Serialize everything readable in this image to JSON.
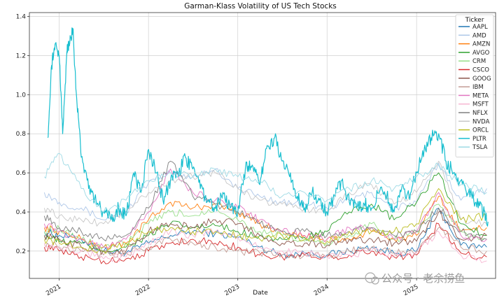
{
  "chart_data": {
    "type": "line",
    "title": "Garman-Klass Volatility of US Tech Stocks",
    "xlabel": "Date",
    "ylabel": "",
    "ylim": [
      0.06,
      1.42
    ],
    "xlim": [
      "2020-09-01",
      "2025-11-20"
    ],
    "grid": true,
    "legend_title": "Ticker",
    "legend_position": "top-right",
    "yticks": [
      "0.2",
      "0.4",
      "0.6",
      "0.8",
      "1.0",
      "1.2",
      "1.4"
    ],
    "xticks": [
      {
        "label": "2021",
        "date": "2021-01-01"
      },
      {
        "label": "2022",
        "date": "2022-01-01"
      },
      {
        "label": "2023",
        "date": "2023-01-01"
      },
      {
        "label": "2024",
        "date": "2024-01-01"
      },
      {
        "label": "2025",
        "date": "2025-01-01"
      }
    ],
    "series": [
      {
        "name": "AAPL",
        "color": "#1f77b4",
        "x": [
          "2020-11-01",
          "2021-01-01",
          "2021-04-01",
          "2021-07-01",
          "2021-10-01",
          "2022-01-01",
          "2022-04-01",
          "2022-07-01",
          "2022-10-01",
          "2023-01-01",
          "2023-04-01",
          "2023-07-01",
          "2023-10-01",
          "2024-01-01",
          "2024-04-01",
          "2024-07-01",
          "2024-10-01",
          "2025-01-01",
          "2025-04-01",
          "2025-07-01",
          "2025-10-15"
        ],
        "y": [
          0.3,
          0.28,
          0.26,
          0.2,
          0.19,
          0.24,
          0.28,
          0.3,
          0.29,
          0.27,
          0.22,
          0.18,
          0.19,
          0.18,
          0.2,
          0.22,
          0.19,
          0.2,
          0.42,
          0.23,
          0.22
        ]
      },
      {
        "name": "AMD",
        "color": "#aec7e8",
        "x": [
          "2020-11-01",
          "2021-01-01",
          "2021-04-01",
          "2021-07-01",
          "2021-10-01",
          "2022-01-01",
          "2022-04-01",
          "2022-07-01",
          "2022-10-01",
          "2023-01-01",
          "2023-04-01",
          "2023-07-01",
          "2023-10-01",
          "2024-01-01",
          "2024-04-01",
          "2024-07-01",
          "2024-10-01",
          "2025-01-01",
          "2025-04-01",
          "2025-07-01",
          "2025-10-15"
        ],
        "y": [
          0.5,
          0.45,
          0.42,
          0.36,
          0.4,
          0.55,
          0.6,
          0.58,
          0.62,
          0.52,
          0.48,
          0.45,
          0.44,
          0.42,
          0.46,
          0.5,
          0.42,
          0.45,
          0.65,
          0.46,
          0.52
        ]
      },
      {
        "name": "AMZN",
        "color": "#ff7f0e",
        "x": [
          "2020-11-01",
          "2021-01-01",
          "2021-04-01",
          "2021-07-01",
          "2021-10-01",
          "2022-01-01",
          "2022-04-01",
          "2022-07-01",
          "2022-10-01",
          "2023-01-01",
          "2023-04-01",
          "2023-07-01",
          "2023-10-01",
          "2024-01-01",
          "2024-04-01",
          "2024-07-01",
          "2024-10-01",
          "2025-01-01",
          "2025-04-01",
          "2025-07-01",
          "2025-10-15"
        ],
        "y": [
          0.32,
          0.3,
          0.26,
          0.22,
          0.24,
          0.36,
          0.45,
          0.42,
          0.44,
          0.4,
          0.34,
          0.3,
          0.28,
          0.26,
          0.26,
          0.3,
          0.26,
          0.28,
          0.48,
          0.3,
          0.32
        ]
      },
      {
        "name": "AVGO",
        "color": "#2ca02c",
        "x": [
          "2020-11-01",
          "2021-01-01",
          "2021-04-01",
          "2021-07-01",
          "2021-10-01",
          "2022-01-01",
          "2022-04-01",
          "2022-07-01",
          "2022-10-01",
          "2023-01-01",
          "2023-04-01",
          "2023-07-01",
          "2023-10-01",
          "2024-01-01",
          "2024-04-01",
          "2024-07-01",
          "2024-10-01",
          "2025-01-01",
          "2025-04-01",
          "2025-07-01",
          "2025-10-15"
        ],
        "y": [
          0.28,
          0.25,
          0.24,
          0.2,
          0.22,
          0.28,
          0.34,
          0.32,
          0.33,
          0.3,
          0.28,
          0.26,
          0.27,
          0.3,
          0.4,
          0.44,
          0.36,
          0.45,
          0.6,
          0.34,
          0.28
        ]
      },
      {
        "name": "CRM",
        "color": "#98df8a",
        "x": [
          "2020-11-01",
          "2021-01-01",
          "2021-04-01",
          "2021-07-01",
          "2021-10-01",
          "2022-01-01",
          "2022-04-01",
          "2022-07-01",
          "2022-10-01",
          "2023-01-01",
          "2023-04-01",
          "2023-07-01",
          "2023-10-01",
          "2024-01-01",
          "2024-04-01",
          "2024-07-01",
          "2024-10-01",
          "2025-01-01",
          "2025-04-01",
          "2025-07-01",
          "2025-10-15"
        ],
        "y": [
          0.3,
          0.32,
          0.26,
          0.22,
          0.24,
          0.34,
          0.4,
          0.38,
          0.42,
          0.36,
          0.3,
          0.28,
          0.25,
          0.24,
          0.28,
          0.34,
          0.26,
          0.3,
          0.44,
          0.3,
          0.26
        ]
      },
      {
        "name": "CSCO",
        "color": "#d62728",
        "x": [
          "2020-11-01",
          "2021-01-01",
          "2021-04-01",
          "2021-07-01",
          "2021-10-01",
          "2022-01-01",
          "2022-04-01",
          "2022-07-01",
          "2022-10-01",
          "2023-01-01",
          "2023-04-01",
          "2023-07-01",
          "2023-10-01",
          "2024-01-01",
          "2024-04-01",
          "2024-07-01",
          "2024-10-01",
          "2025-01-01",
          "2025-04-01",
          "2025-07-01",
          "2025-10-15"
        ],
        "y": [
          0.22,
          0.2,
          0.17,
          0.15,
          0.16,
          0.2,
          0.24,
          0.26,
          0.24,
          0.22,
          0.18,
          0.17,
          0.18,
          0.17,
          0.18,
          0.2,
          0.17,
          0.18,
          0.34,
          0.19,
          0.17
        ]
      },
      {
        "name": "GOOG",
        "color": "#8c564b",
        "x": [
          "2020-11-01",
          "2021-01-01",
          "2021-04-01",
          "2021-07-01",
          "2021-10-01",
          "2022-01-01",
          "2022-04-01",
          "2022-07-01",
          "2022-10-01",
          "2023-01-01",
          "2023-04-01",
          "2023-07-01",
          "2023-10-01",
          "2024-01-01",
          "2024-04-01",
          "2024-07-01",
          "2024-10-01",
          "2025-01-01",
          "2025-04-01",
          "2025-07-01",
          "2025-10-15"
        ],
        "y": [
          0.28,
          0.26,
          0.22,
          0.2,
          0.2,
          0.3,
          0.34,
          0.32,
          0.36,
          0.34,
          0.28,
          0.24,
          0.24,
          0.23,
          0.26,
          0.26,
          0.24,
          0.25,
          0.4,
          0.26,
          0.28
        ]
      },
      {
        "name": "IBM",
        "color": "#c49c94",
        "x": [
          "2020-11-01",
          "2021-01-01",
          "2021-04-01",
          "2021-07-01",
          "2021-10-01",
          "2022-01-01",
          "2022-04-01",
          "2022-07-01",
          "2022-10-01",
          "2023-01-01",
          "2023-04-01",
          "2023-07-01",
          "2023-10-01",
          "2024-01-01",
          "2024-04-01",
          "2024-07-01",
          "2024-10-01",
          "2025-01-01",
          "2025-04-01",
          "2025-07-01",
          "2025-10-15"
        ],
        "y": [
          0.24,
          0.22,
          0.2,
          0.18,
          0.19,
          0.22,
          0.26,
          0.24,
          0.22,
          0.2,
          0.19,
          0.18,
          0.18,
          0.17,
          0.2,
          0.22,
          0.19,
          0.2,
          0.32,
          0.22,
          0.2
        ]
      },
      {
        "name": "META",
        "color": "#e377c2",
        "x": [
          "2020-11-01",
          "2021-01-01",
          "2021-04-01",
          "2021-07-01",
          "2021-10-01",
          "2022-01-01",
          "2022-04-01",
          "2022-07-01",
          "2022-10-01",
          "2023-01-01",
          "2023-04-01",
          "2023-07-01",
          "2023-10-01",
          "2024-01-01",
          "2024-04-01",
          "2024-07-01",
          "2024-10-01",
          "2025-01-01",
          "2025-04-01",
          "2025-07-01",
          "2025-10-15"
        ],
        "y": [
          0.34,
          0.3,
          0.26,
          0.22,
          0.26,
          0.4,
          0.62,
          0.5,
          0.46,
          0.42,
          0.36,
          0.3,
          0.28,
          0.26,
          0.32,
          0.32,
          0.26,
          0.3,
          0.5,
          0.28,
          0.26
        ]
      },
      {
        "name": "MSFT",
        "color": "#f7b6d2",
        "x": [
          "2020-11-01",
          "2021-01-01",
          "2021-04-01",
          "2021-07-01",
          "2021-10-01",
          "2022-01-01",
          "2022-04-01",
          "2022-07-01",
          "2022-10-01",
          "2023-01-01",
          "2023-04-01",
          "2023-07-01",
          "2023-10-01",
          "2024-01-01",
          "2024-04-01",
          "2024-07-01",
          "2024-10-01",
          "2025-01-01",
          "2025-04-01",
          "2025-07-01",
          "2025-10-15"
        ],
        "y": [
          0.24,
          0.22,
          0.2,
          0.16,
          0.17,
          0.24,
          0.3,
          0.28,
          0.3,
          0.27,
          0.22,
          0.2,
          0.19,
          0.17,
          0.18,
          0.2,
          0.18,
          0.19,
          0.3,
          0.18,
          0.15
        ]
      },
      {
        "name": "NFLX",
        "color": "#7f7f7f",
        "x": [
          "2020-11-01",
          "2021-01-01",
          "2021-04-01",
          "2021-07-01",
          "2021-10-01",
          "2022-01-01",
          "2022-04-01",
          "2022-07-01",
          "2022-10-01",
          "2023-01-01",
          "2023-04-01",
          "2023-07-01",
          "2023-10-01",
          "2024-01-01",
          "2024-04-01",
          "2024-07-01",
          "2024-10-01",
          "2025-01-01",
          "2025-04-01",
          "2025-07-01",
          "2025-10-15"
        ],
        "y": [
          0.38,
          0.32,
          0.3,
          0.26,
          0.28,
          0.42,
          0.66,
          0.48,
          0.44,
          0.4,
          0.34,
          0.3,
          0.3,
          0.28,
          0.3,
          0.32,
          0.28,
          0.3,
          0.42,
          0.3,
          0.26
        ]
      },
      {
        "name": "NVDA",
        "color": "#c7c7c7",
        "x": [
          "2020-11-01",
          "2021-01-01",
          "2021-04-01",
          "2021-07-01",
          "2021-10-01",
          "2022-01-01",
          "2022-04-01",
          "2022-07-01",
          "2022-10-01",
          "2023-01-01",
          "2023-04-01",
          "2023-07-01",
          "2023-10-01",
          "2024-01-01",
          "2024-04-01",
          "2024-07-01",
          "2024-10-01",
          "2025-01-01",
          "2025-04-01",
          "2025-07-01",
          "2025-10-15"
        ],
        "y": [
          0.42,
          0.38,
          0.36,
          0.34,
          0.4,
          0.5,
          0.56,
          0.58,
          0.6,
          0.52,
          0.46,
          0.44,
          0.42,
          0.4,
          0.5,
          0.54,
          0.44,
          0.5,
          0.66,
          0.36,
          0.34
        ]
      },
      {
        "name": "ORCL",
        "color": "#bcbd22",
        "x": [
          "2020-11-01",
          "2021-01-01",
          "2021-04-01",
          "2021-07-01",
          "2021-10-01",
          "2022-01-01",
          "2022-04-01",
          "2022-07-01",
          "2022-10-01",
          "2023-01-01",
          "2023-04-01",
          "2023-07-01",
          "2023-10-01",
          "2024-01-01",
          "2024-04-01",
          "2024-07-01",
          "2024-10-01",
          "2025-01-01",
          "2025-04-01",
          "2025-07-01",
          "2025-10-15"
        ],
        "y": [
          0.26,
          0.24,
          0.22,
          0.2,
          0.24,
          0.3,
          0.32,
          0.3,
          0.3,
          0.28,
          0.26,
          0.28,
          0.26,
          0.25,
          0.3,
          0.3,
          0.3,
          0.34,
          0.52,
          0.36,
          0.38
        ]
      },
      {
        "name": "PLTR",
        "color": "#17becf",
        "x": [
          "2020-11-15",
          "2020-12-01",
          "2020-12-15",
          "2021-01-01",
          "2021-01-15",
          "2021-02-01",
          "2021-02-10",
          "2021-02-25",
          "2021-03-15",
          "2021-04-01",
          "2021-05-01",
          "2021-06-01",
          "2021-07-01",
          "2021-08-01",
          "2021-09-01",
          "2021-10-01",
          "2021-11-01",
          "2021-12-01",
          "2022-01-01",
          "2022-02-01",
          "2022-03-01",
          "2022-04-01",
          "2022-05-01",
          "2022-06-01",
          "2022-07-01",
          "2022-08-01",
          "2022-09-01",
          "2022-10-01",
          "2022-11-01",
          "2022-12-01",
          "2023-01-01",
          "2023-02-01",
          "2023-03-01",
          "2023-04-01",
          "2023-05-01",
          "2023-06-01",
          "2023-07-01",
          "2023-08-01",
          "2023-09-01",
          "2023-10-01",
          "2023-11-01",
          "2023-12-01",
          "2024-01-01",
          "2024-02-01",
          "2024-03-01",
          "2024-04-01",
          "2024-05-01",
          "2024-06-01",
          "2024-07-01",
          "2024-08-01",
          "2024-09-01",
          "2024-10-01",
          "2024-11-01",
          "2024-12-01",
          "2025-01-01",
          "2025-02-01",
          "2025-03-01",
          "2025-04-01",
          "2025-05-01",
          "2025-06-01",
          "2025-07-01",
          "2025-08-01",
          "2025-09-01",
          "2025-10-01",
          "2025-10-20"
        ],
        "y": [
          0.78,
          1.15,
          1.26,
          1.2,
          0.8,
          1.22,
          1.25,
          1.34,
          0.95,
          0.68,
          0.52,
          0.45,
          0.4,
          0.36,
          0.42,
          0.38,
          0.6,
          0.5,
          0.72,
          0.6,
          0.46,
          0.56,
          0.6,
          0.68,
          0.62,
          0.52,
          0.46,
          0.42,
          0.5,
          0.42,
          0.4,
          0.62,
          0.64,
          0.54,
          0.74,
          0.78,
          0.66,
          0.58,
          0.48,
          0.42,
          0.5,
          0.46,
          0.4,
          0.48,
          0.56,
          0.45,
          0.42,
          0.44,
          0.42,
          0.5,
          0.48,
          0.4,
          0.52,
          0.48,
          0.6,
          0.72,
          0.78,
          0.8,
          0.66,
          0.6,
          0.56,
          0.5,
          0.45,
          0.4,
          0.35
        ]
      },
      {
        "name": "TSLA",
        "color": "#9edae5",
        "x": [
          "2020-11-01",
          "2021-01-01",
          "2021-04-01",
          "2021-07-01",
          "2021-10-01",
          "2022-01-01",
          "2022-04-01",
          "2022-07-01",
          "2022-10-01",
          "2023-01-01",
          "2023-04-01",
          "2023-07-01",
          "2023-10-01",
          "2024-01-01",
          "2024-04-01",
          "2024-07-01",
          "2024-10-01",
          "2025-01-01",
          "2025-04-01",
          "2025-07-01",
          "2025-10-15"
        ],
        "y": [
          0.58,
          0.7,
          0.52,
          0.4,
          0.46,
          0.56,
          0.6,
          0.58,
          0.62,
          0.58,
          0.56,
          0.48,
          0.5,
          0.46,
          0.52,
          0.56,
          0.52,
          0.58,
          0.64,
          0.54,
          0.5
        ]
      }
    ]
  },
  "watermark": {
    "text": "公众号 · 老余捞鱼"
  }
}
